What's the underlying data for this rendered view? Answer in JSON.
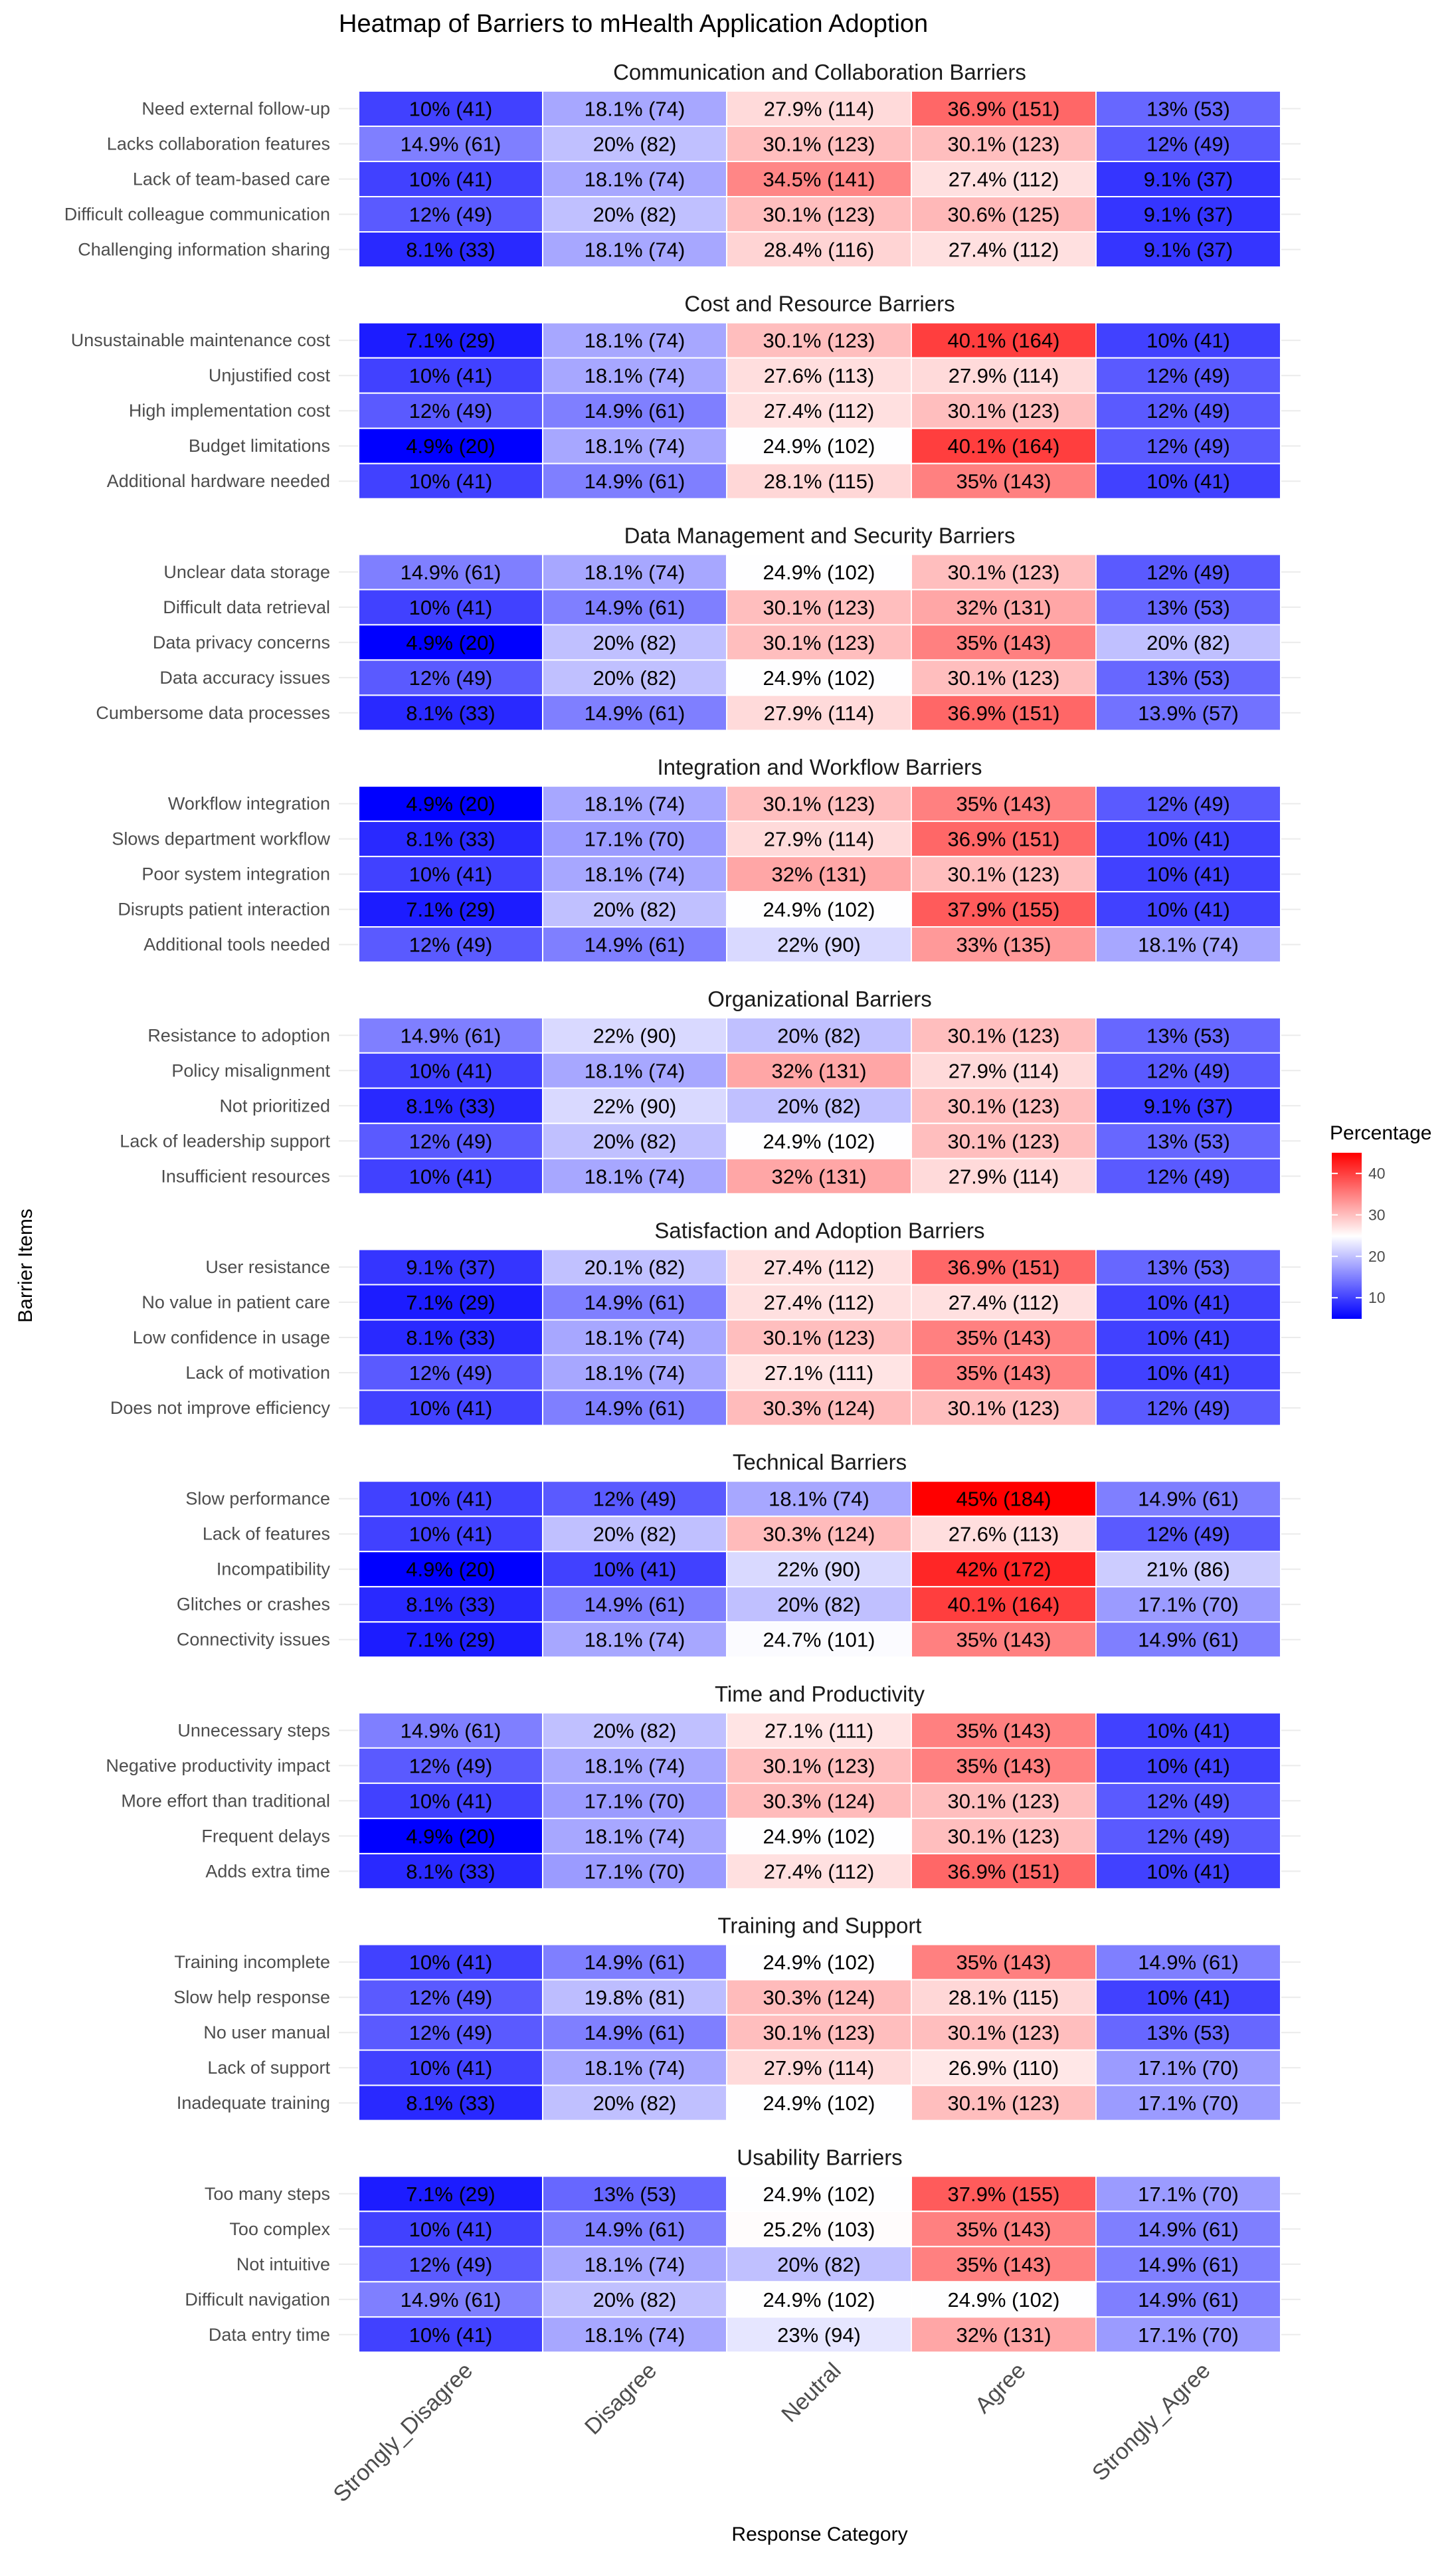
{
  "chart_data": {
    "type": "heatmap",
    "title": "Heatmap of Barriers to mHealth Application Adoption",
    "xlabel": "Response Category",
    "ylabel": "Barrier Items",
    "categories": [
      "Strongly_Disagree",
      "Disagree",
      "Neutral",
      "Agree",
      "Strongly_Agree"
    ],
    "legend": {
      "title": "Percentage",
      "ticks": [
        10,
        20,
        30,
        40
      ],
      "range": [
        4.9,
        45
      ],
      "low_color": "#0000ff",
      "mid_color": "#ffffff",
      "high_color": "#ff0000",
      "midpoint": 25,
      "position": "right"
    },
    "facets": [
      {
        "name": "Communication and Collaboration Barriers",
        "rows": [
          {
            "item": "Need external follow-up",
            "labels": [
              "10% (41)",
              "18.1% (74)",
              "27.9% (114)",
              "36.9% (151)",
              "13% (53)"
            ]
          },
          {
            "item": "Lacks collaboration features",
            "labels": [
              "14.9% (61)",
              "20% (82)",
              "30.1% (123)",
              "30.1% (123)",
              "12% (49)"
            ]
          },
          {
            "item": "Lack of team-based care",
            "labels": [
              "10% (41)",
              "18.1% (74)",
              "34.5% (141)",
              "27.4% (112)",
              "9.1% (37)"
            ]
          },
          {
            "item": "Difficult colleague communication",
            "labels": [
              "12% (49)",
              "20% (82)",
              "30.1% (123)",
              "30.6% (125)",
              "9.1% (37)"
            ]
          },
          {
            "item": "Challenging information sharing",
            "labels": [
              "8.1% (33)",
              "18.1% (74)",
              "28.4% (116)",
              "27.4% (112)",
              "9.1% (37)"
            ]
          }
        ]
      },
      {
        "name": "Cost and Resource Barriers",
        "rows": [
          {
            "item": "Unsustainable maintenance cost",
            "labels": [
              "7.1% (29)",
              "18.1% (74)",
              "30.1% (123)",
              "40.1% (164)",
              "10% (41)"
            ]
          },
          {
            "item": "Unjustified cost",
            "labels": [
              "10% (41)",
              "18.1% (74)",
              "27.6% (113)",
              "27.9% (114)",
              "12% (49)"
            ]
          },
          {
            "item": "High implementation cost",
            "labels": [
              "12% (49)",
              "14.9% (61)",
              "27.4% (112)",
              "30.1% (123)",
              "12% (49)"
            ]
          },
          {
            "item": "Budget limitations",
            "labels": [
              "4.9% (20)",
              "18.1% (74)",
              "24.9% (102)",
              "40.1% (164)",
              "12% (49)"
            ]
          },
          {
            "item": "Additional hardware needed",
            "labels": [
              "10% (41)",
              "14.9% (61)",
              "28.1% (115)",
              "35% (143)",
              "10% (41)"
            ]
          }
        ]
      },
      {
        "name": "Data Management and Security Barriers",
        "rows": [
          {
            "item": "Unclear data storage",
            "labels": [
              "14.9% (61)",
              "18.1% (74)",
              "24.9% (102)",
              "30.1% (123)",
              "12% (49)"
            ]
          },
          {
            "item": "Difficult data retrieval",
            "labels": [
              "10% (41)",
              "14.9% (61)",
              "30.1% (123)",
              "32% (131)",
              "13% (53)"
            ]
          },
          {
            "item": "Data privacy concerns",
            "labels": [
              "4.9% (20)",
              "20% (82)",
              "30.1% (123)",
              "35% (143)",
              "20% (82)"
            ]
          },
          {
            "item": "Data accuracy issues",
            "labels": [
              "12% (49)",
              "20% (82)",
              "24.9% (102)",
              "30.1% (123)",
              "13% (53)"
            ]
          },
          {
            "item": "Cumbersome data processes",
            "labels": [
              "8.1% (33)",
              "14.9% (61)",
              "27.9% (114)",
              "36.9% (151)",
              "13.9% (57)"
            ]
          }
        ]
      },
      {
        "name": "Integration and Workflow Barriers",
        "rows": [
          {
            "item": "Workflow integration",
            "labels": [
              "4.9% (20)",
              "18.1% (74)",
              "30.1% (123)",
              "35% (143)",
              "12% (49)"
            ]
          },
          {
            "item": "Slows department workflow",
            "labels": [
              "8.1% (33)",
              "17.1% (70)",
              "27.9% (114)",
              "36.9% (151)",
              "10% (41)"
            ]
          },
          {
            "item": "Poor system integration",
            "labels": [
              "10% (41)",
              "18.1% (74)",
              "32% (131)",
              "30.1% (123)",
              "10% (41)"
            ]
          },
          {
            "item": "Disrupts patient interaction",
            "labels": [
              "7.1% (29)",
              "20% (82)",
              "24.9% (102)",
              "37.9% (155)",
              "10% (41)"
            ]
          },
          {
            "item": "Additional tools needed",
            "labels": [
              "12% (49)",
              "14.9% (61)",
              "22% (90)",
              "33% (135)",
              "18.1% (74)"
            ]
          }
        ]
      },
      {
        "name": "Organizational Barriers",
        "rows": [
          {
            "item": "Resistance to adoption",
            "labels": [
              "14.9% (61)",
              "22% (90)",
              "20% (82)",
              "30.1% (123)",
              "13% (53)"
            ]
          },
          {
            "item": "Policy misalignment",
            "labels": [
              "10% (41)",
              "18.1% (74)",
              "32% (131)",
              "27.9% (114)",
              "12% (49)"
            ]
          },
          {
            "item": "Not prioritized",
            "labels": [
              "8.1% (33)",
              "22% (90)",
              "20% (82)",
              "30.1% (123)",
              "9.1% (37)"
            ]
          },
          {
            "item": "Lack of leadership support",
            "labels": [
              "12% (49)",
              "20% (82)",
              "24.9% (102)",
              "30.1% (123)",
              "13% (53)"
            ]
          },
          {
            "item": "Insufficient resources",
            "labels": [
              "10% (41)",
              "18.1% (74)",
              "32% (131)",
              "27.9% (114)",
              "12% (49)"
            ]
          }
        ]
      },
      {
        "name": "Satisfaction and Adoption Barriers",
        "rows": [
          {
            "item": "User resistance",
            "labels": [
              "9.1% (37)",
              "20.1% (82)",
              "27.4% (112)",
              "36.9% (151)",
              "13% (53)"
            ]
          },
          {
            "item": "No value in patient care",
            "labels": [
              "7.1% (29)",
              "14.9% (61)",
              "27.4% (112)",
              "27.4% (112)",
              "10% (41)"
            ]
          },
          {
            "item": "Low confidence in usage",
            "labels": [
              "8.1% (33)",
              "18.1% (74)",
              "30.1% (123)",
              "35% (143)",
              "10% (41)"
            ]
          },
          {
            "item": "Lack of motivation",
            "labels": [
              "12% (49)",
              "18.1% (74)",
              "27.1% (111)",
              "35% (143)",
              "10% (41)"
            ]
          },
          {
            "item": "Does not improve efficiency",
            "labels": [
              "10% (41)",
              "14.9% (61)",
              "30.3% (124)",
              "30.1% (123)",
              "12% (49)"
            ]
          }
        ]
      },
      {
        "name": "Technical Barriers",
        "rows": [
          {
            "item": "Slow performance",
            "labels": [
              "10% (41)",
              "12% (49)",
              "18.1% (74)",
              "45% (184)",
              "14.9% (61)"
            ]
          },
          {
            "item": "Lack of features",
            "labels": [
              "10% (41)",
              "20% (82)",
              "30.3% (124)",
              "27.6% (113)",
              "12% (49)"
            ]
          },
          {
            "item": "Incompatibility",
            "labels": [
              "4.9% (20)",
              "10% (41)",
              "22% (90)",
              "42% (172)",
              "21% (86)"
            ]
          },
          {
            "item": "Glitches or crashes",
            "labels": [
              "8.1% (33)",
              "14.9% (61)",
              "20% (82)",
              "40.1% (164)",
              "17.1% (70)"
            ]
          },
          {
            "item": "Connectivity issues",
            "labels": [
              "7.1% (29)",
              "18.1% (74)",
              "24.7% (101)",
              "35% (143)",
              "14.9% (61)"
            ]
          }
        ]
      },
      {
        "name": "Time and Productivity",
        "rows": [
          {
            "item": "Unnecessary steps",
            "labels": [
              "14.9% (61)",
              "20% (82)",
              "27.1% (111)",
              "35% (143)",
              "10% (41)"
            ]
          },
          {
            "item": "Negative productivity impact",
            "labels": [
              "12% (49)",
              "18.1% (74)",
              "30.1% (123)",
              "35% (143)",
              "10% (41)"
            ]
          },
          {
            "item": "More effort than traditional",
            "labels": [
              "10% (41)",
              "17.1% (70)",
              "30.3% (124)",
              "30.1% (123)",
              "12% (49)"
            ]
          },
          {
            "item": "Frequent delays",
            "labels": [
              "4.9% (20)",
              "18.1% (74)",
              "24.9% (102)",
              "30.1% (123)",
              "12% (49)"
            ]
          },
          {
            "item": "Adds extra time",
            "labels": [
              "8.1% (33)",
              "17.1% (70)",
              "27.4% (112)",
              "36.9% (151)",
              "10% (41)"
            ]
          }
        ]
      },
      {
        "name": "Training and Support",
        "rows": [
          {
            "item": "Training incomplete",
            "labels": [
              "10% (41)",
              "14.9% (61)",
              "24.9% (102)",
              "35% (143)",
              "14.9% (61)"
            ]
          },
          {
            "item": "Slow help response",
            "labels": [
              "12% (49)",
              "19.8% (81)",
              "30.3% (124)",
              "28.1% (115)",
              "10% (41)"
            ]
          },
          {
            "item": "No user manual",
            "labels": [
              "12% (49)",
              "14.9% (61)",
              "30.1% (123)",
              "30.1% (123)",
              "13% (53)"
            ]
          },
          {
            "item": "Lack of support",
            "labels": [
              "10% (41)",
              "18.1% (74)",
              "27.9% (114)",
              "26.9% (110)",
              "17.1% (70)"
            ]
          },
          {
            "item": "Inadequate training",
            "labels": [
              "8.1% (33)",
              "20% (82)",
              "24.9% (102)",
              "30.1% (123)",
              "17.1% (70)"
            ]
          }
        ]
      },
      {
        "name": "Usability Barriers",
        "rows": [
          {
            "item": "Too many steps",
            "labels": [
              "7.1% (29)",
              "13% (53)",
              "24.9% (102)",
              "37.9% (155)",
              "17.1% (70)"
            ]
          },
          {
            "item": "Too complex",
            "labels": [
              "10% (41)",
              "14.9% (61)",
              "25.2% (103)",
              "35% (143)",
              "14.9% (61)"
            ]
          },
          {
            "item": "Not intuitive",
            "labels": [
              "12% (49)",
              "18.1% (74)",
              "20% (82)",
              "35% (143)",
              "14.9% (61)"
            ]
          },
          {
            "item": "Difficult navigation",
            "labels": [
              "14.9% (61)",
              "20% (82)",
              "24.9% (102)",
              "24.9% (102)",
              "14.9% (61)"
            ]
          },
          {
            "item": "Data entry time",
            "labels": [
              "10% (41)",
              "18.1% (74)",
              "23% (94)",
              "32% (131)",
              "17.1% (70)"
            ]
          }
        ]
      }
    ]
  }
}
